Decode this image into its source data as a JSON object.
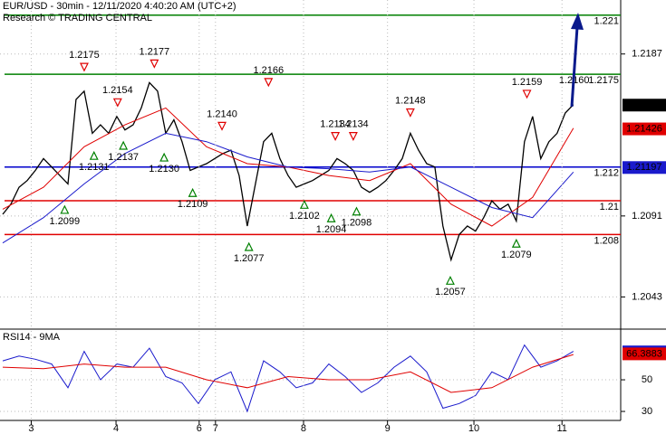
{
  "chart_data": [
    {
      "type": "line",
      "title": "EUR/USD - 30min - 12/11/2020 4:40:20 AM (UTC+2)",
      "subtitle": "Research © TRADING CENTRAL",
      "xlim": [
        -0.33,
        75.8
      ],
      "ylim": [
        1.2025,
        1.2219
      ],
      "yticks": [
        1.2187,
        1.2091,
        1.2043
      ],
      "grid": true,
      "series": [
        {
          "color": "#000000",
          "last_value": 1.21567,
          "x": [
            0,
            1,
            2,
            3,
            4,
            5,
            6,
            7,
            8,
            9,
            10,
            11,
            12,
            13,
            14,
            15,
            16,
            17,
            18,
            19,
            20,
            21,
            22,
            23,
            24,
            25,
            26,
            27,
            28,
            29,
            30,
            31,
            32,
            33,
            34,
            35,
            36,
            37,
            38,
            39,
            40,
            41,
            42,
            43,
            44,
            45,
            46,
            47,
            48,
            49,
            50,
            51,
            52,
            53,
            54,
            55,
            56,
            57,
            58,
            59,
            60,
            61,
            62,
            63,
            64,
            65,
            66,
            67,
            68,
            69,
            70
          ],
          "values": [
            1.2092,
            1.2098,
            1.2108,
            1.2112,
            1.2118,
            1.2125,
            1.212,
            1.2115,
            1.211,
            1.216,
            1.2165,
            1.214,
            1.2145,
            1.214,
            1.215,
            1.2142,
            1.2145,
            1.2155,
            1.217,
            1.2165,
            1.214,
            1.2148,
            1.2135,
            1.2118,
            1.212,
            1.2122,
            1.2125,
            1.2128,
            1.213,
            1.2115,
            1.2085,
            1.211,
            1.2135,
            1.214,
            1.2125,
            1.2115,
            1.2108,
            1.211,
            1.2112,
            1.2115,
            1.2118,
            1.2125,
            1.2122,
            1.2118,
            1.2108,
            1.2105,
            1.2108,
            1.2112,
            1.2118,
            1.2125,
            1.214,
            1.213,
            1.2122,
            1.212,
            1.2085,
            1.2065,
            1.208,
            1.2085,
            1.2082,
            1.209,
            1.21,
            1.2095,
            1.2098,
            1.2088,
            1.2135,
            1.215,
            1.2125,
            1.2135,
            1.214,
            1.2152,
            1.2157
          ]
        },
        {
          "color": "#e00000",
          "last_value": 1.21426,
          "x": [
            0,
            5,
            10,
            15,
            20,
            25,
            30,
            35,
            40,
            45,
            50,
            55,
            60,
            65,
            70
          ],
          "values": [
            1.2095,
            1.2108,
            1.2132,
            1.2145,
            1.2155,
            1.2132,
            1.2122,
            1.212,
            1.2115,
            1.2112,
            1.2122,
            1.2098,
            1.2085,
            1.2102,
            1.2143
          ]
        },
        {
          "color": "#1a1acc",
          "last_value": 1.21197,
          "x": [
            0,
            5,
            10,
            15,
            20,
            25,
            30,
            35,
            40,
            45,
            50,
            55,
            60,
            65,
            70
          ],
          "values": [
            1.2075,
            1.209,
            1.211,
            1.2128,
            1.214,
            1.2135,
            1.2126,
            1.212,
            1.2119,
            1.2117,
            1.212,
            1.2108,
            1.2096,
            1.209,
            1.2117
          ]
        }
      ],
      "levels": [
        {
          "value": 1.221,
          "color": "#008000"
        },
        {
          "value": 1.2175,
          "color": "#008000"
        },
        {
          "value": 1.212,
          "color": "#0000cc"
        },
        {
          "value": 1.21,
          "color": "#e00000"
        },
        {
          "value": 1.208,
          "color": "#e00000"
        }
      ],
      "peaks": [
        {
          "x": 10,
          "value": 1.2175
        },
        {
          "x": 18.6,
          "value": 1.2177
        },
        {
          "x": 14.1,
          "value": 1.2154
        },
        {
          "x": 32.6,
          "value": 1.2166
        },
        {
          "x": 26.9,
          "value": 1.214,
          "label": "1.2140"
        },
        {
          "x": 40.8,
          "value": 1.2134
        },
        {
          "x": 43,
          "value": 1.2134
        },
        {
          "x": 50,
          "value": 1.2148
        },
        {
          "x": 64.3,
          "value": 1.2159
        }
      ],
      "troughs": [
        {
          "x": 7.6,
          "value": 1.2099
        },
        {
          "x": 11.2,
          "value": 1.2131
        },
        {
          "x": 14.8,
          "value": 1.2137
        },
        {
          "x": 19.8,
          "value": 1.213,
          "label": "1.2130"
        },
        {
          "x": 23.3,
          "value": 1.2109
        },
        {
          "x": 30.2,
          "value": 1.2077
        },
        {
          "x": 37,
          "value": 1.2102
        },
        {
          "x": 40.3,
          "value": 1.2094
        },
        {
          "x": 43.4,
          "value": 1.2098
        },
        {
          "x": 54.9,
          "value": 1.2057
        },
        {
          "x": 63,
          "value": 1.2079
        }
      ],
      "annotations": [
        {
          "x": 70.1,
          "value": 1.216,
          "label": "1.2160"
        }
      ]
    },
    {
      "type": "line",
      "title": "RSI14 - 9MA",
      "xlim": [
        -0.33,
        75.8
      ],
      "xticks": [
        {
          "value": 3.5,
          "label": "3"
        },
        {
          "value": 13.9,
          "label": "4"
        },
        {
          "value": 24.1,
          "label": "6"
        },
        {
          "value": 26.1,
          "label": "7"
        },
        {
          "value": 36.9,
          "label": "8"
        },
        {
          "value": 47.2,
          "label": "9"
        },
        {
          "value": 57.8,
          "label": "10"
        },
        {
          "value": 68.6,
          "label": "11"
        }
      ],
      "ylim": [
        24.3,
        80.9
      ],
      "yticks": [
        50,
        30
      ],
      "grid": true,
      "series": [
        {
          "color": "#1a1acc",
          "last_value": 67.6502,
          "x": [
            0,
            2,
            4,
            6,
            8,
            10,
            12,
            14,
            16,
            18,
            20,
            22,
            24,
            26,
            28,
            30,
            32,
            34,
            36,
            38,
            40,
            42,
            44,
            46,
            48,
            50,
            52,
            54,
            56,
            58,
            60,
            62,
            64,
            66,
            68,
            70
          ],
          "values": [
            62,
            65,
            63,
            60,
            45,
            68,
            50,
            60,
            58,
            70,
            52,
            48,
            35,
            50,
            55,
            30,
            62,
            55,
            45,
            48,
            60,
            52,
            42,
            48,
            58,
            65,
            55,
            32,
            35,
            40,
            55,
            50,
            72,
            58,
            62,
            68
          ]
        },
        {
          "color": "#e00000",
          "last_value": 66.3883,
          "x": [
            0,
            5,
            10,
            15,
            20,
            25,
            30,
            35,
            40,
            45,
            50,
            55,
            60,
            65,
            70
          ],
          "values": [
            58,
            57,
            60,
            58,
            58,
            50,
            45,
            52,
            50,
            50,
            55,
            42,
            45,
            58,
            66
          ]
        }
      ]
    }
  ]
}
